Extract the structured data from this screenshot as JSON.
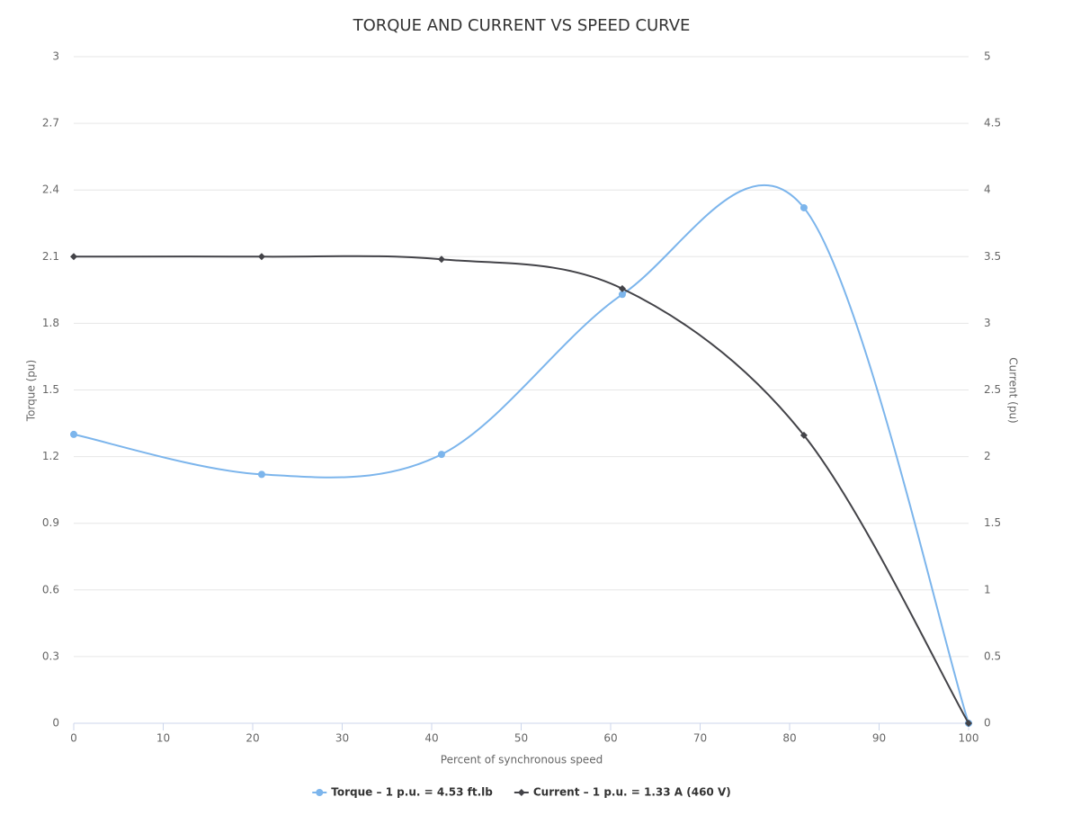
{
  "chart_data": {
    "type": "line",
    "title": "TORQUE AND CURRENT VS SPEED CURVE",
    "x_label": "Percent of synchronous speed",
    "y_label": "Torque (pu)",
    "y2_label": "Current (pu)",
    "x": [
      0,
      21,
      41.1,
      61.3,
      81.6,
      100
    ],
    "series": [
      {
        "name": "Torque – 1 p.u. = 4.53 ft.lb",
        "color": "#7cb5ec",
        "marker": "circle",
        "values": [
          1.3,
          1.12,
          1.21,
          1.93,
          2.32,
          0
        ]
      },
      {
        "name": "Current – 1 p.u. = 1.33 A (460 V)",
        "color": "#434348",
        "marker": "diamond",
        "axis": "y2",
        "values": [
          3.5,
          3.5,
          3.48,
          3.26,
          2.16,
          0
        ]
      }
    ],
    "xlim": [
      0,
      100
    ],
    "xticks": [
      0,
      10,
      20,
      30,
      40,
      50,
      60,
      70,
      80,
      90,
      100
    ],
    "ylim": [
      0,
      3
    ],
    "yticks": [
      0,
      0.3,
      0.6,
      0.9,
      1.2,
      1.5,
      1.8,
      2.1,
      2.4,
      2.7,
      3
    ],
    "y2lim": [
      0,
      5
    ],
    "y2ticks": [
      0,
      0.5,
      1,
      1.5,
      2,
      2.5,
      3,
      3.5,
      4,
      4.5,
      5
    ],
    "grid": true,
    "smooth": true,
    "legend": "bottom"
  }
}
